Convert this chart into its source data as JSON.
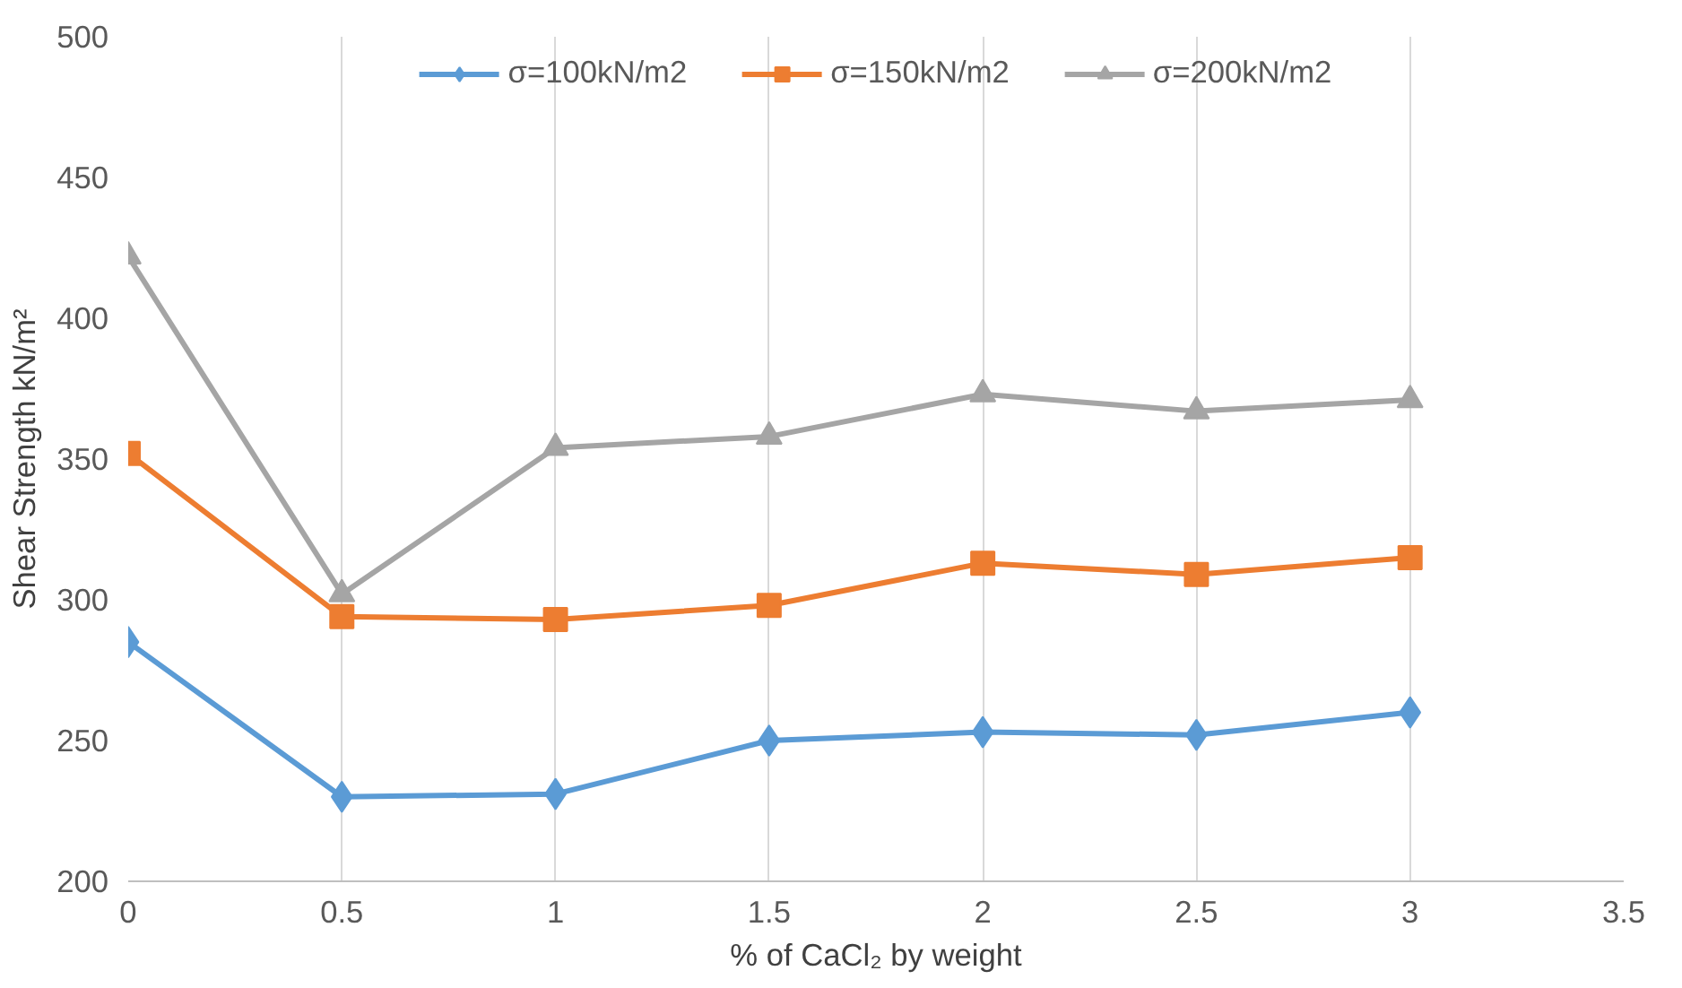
{
  "chart_data": {
    "type": "line",
    "xlabel": "% of CaCl₂ by weight",
    "ylabel": "Shear Strength kN/m²",
    "x": [
      0,
      0.5,
      1,
      1.5,
      2,
      2.5,
      3
    ],
    "series": [
      {
        "name": "σ=100kN/m2",
        "color": "#5b9bd5",
        "marker": "diamond",
        "values": [
          285,
          230,
          231,
          250,
          253,
          252,
          260
        ]
      },
      {
        "name": "σ=150kN/m2",
        "color": "#ed7d31",
        "marker": "square",
        "values": [
          352,
          294,
          293,
          298,
          313,
          309,
          315
        ]
      },
      {
        "name": "σ=200kN/m2",
        "color": "#a5a5a5",
        "marker": "triangle",
        "values": [
          422,
          302,
          354,
          358,
          373,
          367,
          371
        ]
      }
    ],
    "xlim": [
      0,
      3.5
    ],
    "xticks": [
      0,
      0.5,
      1,
      1.5,
      2,
      2.5,
      3,
      3.5
    ],
    "ylim": [
      200,
      500
    ],
    "yticks": [
      200,
      250,
      300,
      350,
      400,
      450,
      500
    ],
    "grid": "x",
    "legend": "top",
    "line_style": "solid"
  }
}
